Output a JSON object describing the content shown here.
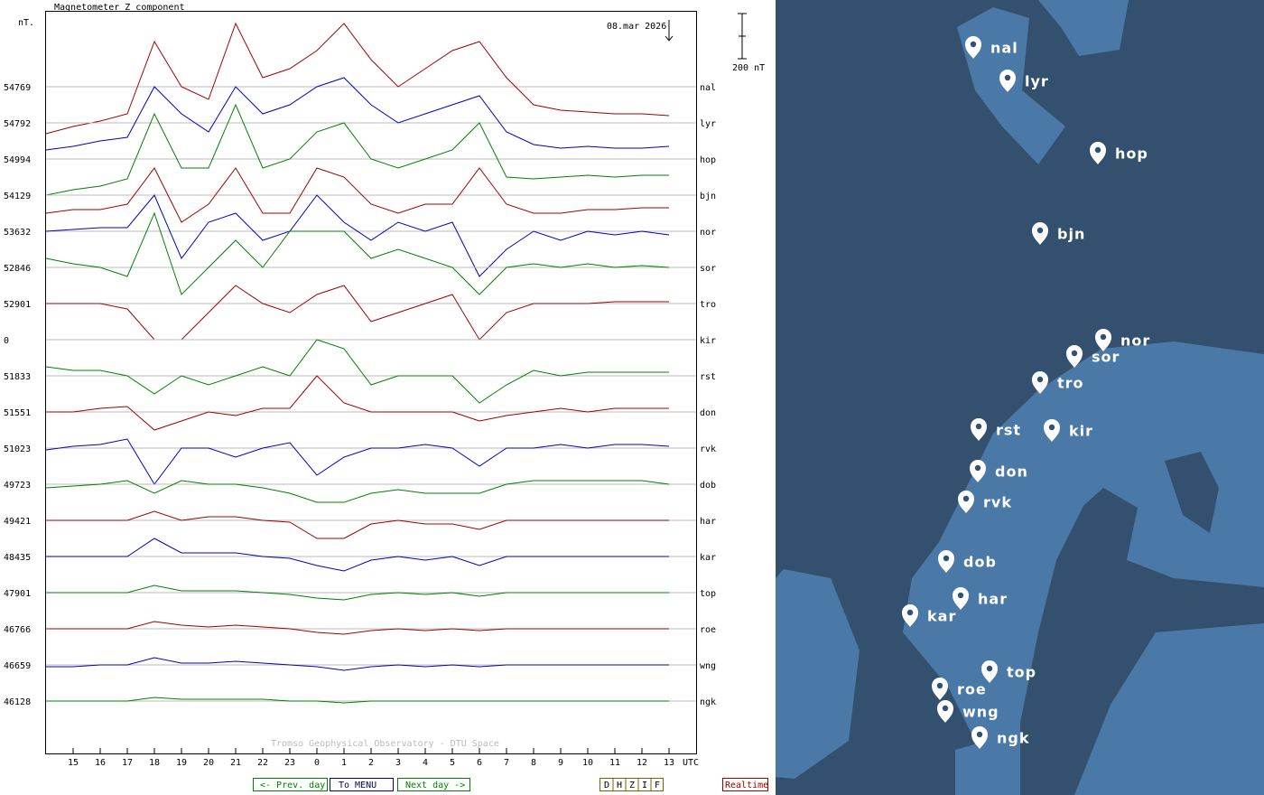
{
  "plot": {
    "title": "Magnetometer Z component",
    "unit": "nT.",
    "date": "08.mar 2026",
    "scale_bar": {
      "value": 200,
      "label": "200 nT"
    },
    "x_axis": {
      "ticks": [
        "15",
        "16",
        "17",
        "18",
        "19",
        "20",
        "21",
        "22",
        "23",
        "0",
        "1",
        "2",
        "3",
        "4",
        "5",
        "6",
        "7",
        "8",
        "9",
        "10",
        "11",
        "12",
        "13"
      ],
      "unit": "UTC"
    },
    "watermark": "Tromso Geophysical Observatory - DTU Space",
    "stations": [
      {
        "code": "nal",
        "baseline": 54769,
        "color": "#a00000",
        "trace": [
          -208,
          -176,
          -152,
          -120,
          200,
          0,
          -56,
          280,
          40,
          80,
          160,
          280,
          120,
          0,
          80,
          160,
          200,
          40,
          -80,
          -104,
          -112,
          -120,
          -120,
          -128
        ]
      },
      {
        "code": "lyr",
        "baseline": 54792,
        "color": "#0000c0",
        "trace": [
          -120,
          -104,
          -80,
          -64,
          160,
          40,
          -40,
          160,
          40,
          80,
          160,
          200,
          80,
          0,
          40,
          80,
          120,
          -40,
          -96,
          -112,
          -104,
          -112,
          -112,
          -104
        ]
      },
      {
        "code": "hop",
        "baseline": 54994,
        "color": "#008000",
        "trace": [
          -160,
          -136,
          -120,
          -88,
          200,
          -40,
          -40,
          240,
          -40,
          0,
          120,
          160,
          0,
          -40,
          0,
          40,
          160,
          -80,
          -88,
          -80,
          -72,
          -80,
          -72,
          -72
        ]
      },
      {
        "code": "bjn",
        "baseline": 54129,
        "color": "#a00000",
        "trace": [
          -80,
          -64,
          -64,
          -40,
          120,
          -120,
          -40,
          120,
          -80,
          -80,
          120,
          80,
          -40,
          -80,
          -40,
          -40,
          120,
          -40,
          -80,
          -80,
          -64,
          -64,
          -56,
          -56
        ]
      },
      {
        "code": "nor",
        "baseline": 53632,
        "color": "#0000c0",
        "trace": [
          0,
          8,
          16,
          16,
          160,
          -120,
          40,
          80,
          -40,
          0,
          160,
          40,
          -40,
          40,
          0,
          40,
          -200,
          -80,
          0,
          -40,
          0,
          -16,
          0,
          -16
        ]
      },
      {
        "code": "sor",
        "baseline": 52846,
        "color": "#008000",
        "trace": [
          40,
          16,
          0,
          -40,
          240,
          -120,
          0,
          120,
          0,
          160,
          160,
          160,
          40,
          80,
          40,
          0,
          -120,
          0,
          16,
          0,
          16,
          0,
          8,
          0
        ]
      },
      {
        "code": "tro",
        "baseline": 52901,
        "color": "#a00000",
        "trace": [
          0,
          0,
          0,
          -24,
          -160,
          -160,
          -40,
          80,
          0,
          -40,
          40,
          80,
          -80,
          -40,
          0,
          40,
          -160,
          -40,
          0,
          0,
          0,
          8,
          8,
          8
        ]
      },
      {
        "code": "kir",
        "baseline": 0,
        "color": "#0000c0"
      },
      {
        "code": "rst",
        "baseline": 51833,
        "color": "#008000",
        "trace": [
          40,
          24,
          24,
          0,
          -80,
          0,
          -40,
          0,
          40,
          0,
          160,
          120,
          -40,
          0,
          0,
          0,
          -120,
          -40,
          24,
          0,
          16,
          16,
          16,
          16
        ]
      },
      {
        "code": "don",
        "baseline": 51551,
        "color": "#a00000",
        "trace": [
          0,
          0,
          16,
          24,
          -80,
          -40,
          0,
          -16,
          16,
          16,
          160,
          40,
          0,
          0,
          0,
          0,
          -40,
          -16,
          0,
          16,
          0,
          16,
          16,
          16
        ]
      },
      {
        "code": "rvk",
        "baseline": 51023,
        "color": "#0000c0",
        "trace": [
          -8,
          8,
          16,
          40,
          -160,
          0,
          0,
          -40,
          0,
          24,
          -120,
          -40,
          0,
          0,
          16,
          0,
          -80,
          0,
          0,
          16,
          0,
          16,
          16,
          8
        ]
      },
      {
        "code": "dob",
        "baseline": 49723,
        "color": "#008000",
        "trace": [
          -16,
          -8,
          0,
          16,
          -40,
          16,
          0,
          0,
          -16,
          -40,
          -80,
          -80,
          -40,
          -24,
          -40,
          -40,
          -40,
          0,
          16,
          16,
          16,
          16,
          16,
          0
        ]
      },
      {
        "code": "har",
        "baseline": 49421,
        "color": "#a00000",
        "trace": [
          0,
          0,
          0,
          0,
          40,
          0,
          16,
          16,
          0,
          -8,
          -80,
          -80,
          -16,
          0,
          -16,
          -16,
          -40,
          0,
          0,
          0,
          0,
          0,
          0,
          0
        ]
      },
      {
        "code": "kar",
        "baseline": 48435,
        "color": "#0000c0",
        "trace": [
          0,
          0,
          0,
          0,
          80,
          16,
          16,
          16,
          0,
          -8,
          -40,
          -64,
          -16,
          0,
          -16,
          0,
          -40,
          0,
          0,
          0,
          0,
          0,
          0,
          0
        ]
      },
      {
        "code": "top",
        "baseline": 47901,
        "color": "#008000",
        "trace": [
          0,
          0,
          0,
          0,
          32,
          8,
          8,
          8,
          0,
          -8,
          -24,
          -32,
          -8,
          0,
          -8,
          0,
          -16,
          0,
          0,
          0,
          0,
          0,
          0,
          0
        ]
      },
      {
        "code": "roe",
        "baseline": 46766,
        "color": "#a00000",
        "trace": [
          0,
          0,
          0,
          0,
          32,
          16,
          8,
          16,
          8,
          0,
          -16,
          -24,
          -8,
          0,
          -8,
          0,
          -8,
          0,
          0,
          0,
          0,
          0,
          0,
          0
        ]
      },
      {
        "code": "wng",
        "baseline": 46659,
        "color": "#0000c0",
        "trace": [
          -8,
          -8,
          0,
          0,
          32,
          8,
          8,
          16,
          8,
          0,
          -8,
          -24,
          -8,
          0,
          -8,
          0,
          -8,
          0,
          0,
          0,
          0,
          0,
          0,
          0
        ]
      },
      {
        "code": "ngk",
        "baseline": 46128,
        "color": "#008000",
        "trace": [
          0,
          0,
          0,
          0,
          16,
          8,
          8,
          8,
          8,
          0,
          0,
          -8,
          0,
          0,
          0,
          0,
          0,
          0,
          0,
          0,
          0,
          0,
          0,
          0
        ]
      }
    ]
  },
  "buttons": {
    "nav": [
      "<- Prev. day",
      "To MENU",
      "Next day ->"
    ],
    "components": [
      "D",
      "H",
      "Z",
      "I",
      "F"
    ],
    "realtime": "Realtime"
  },
  "map": {
    "stations": [
      "nal",
      "lyr",
      "hop",
      "bjn",
      "nor",
      "sor",
      "tro",
      "rst",
      "kir",
      "don",
      "rvk",
      "dob",
      "har",
      "kar",
      "top",
      "roe",
      "wng",
      "ngk"
    ]
  }
}
